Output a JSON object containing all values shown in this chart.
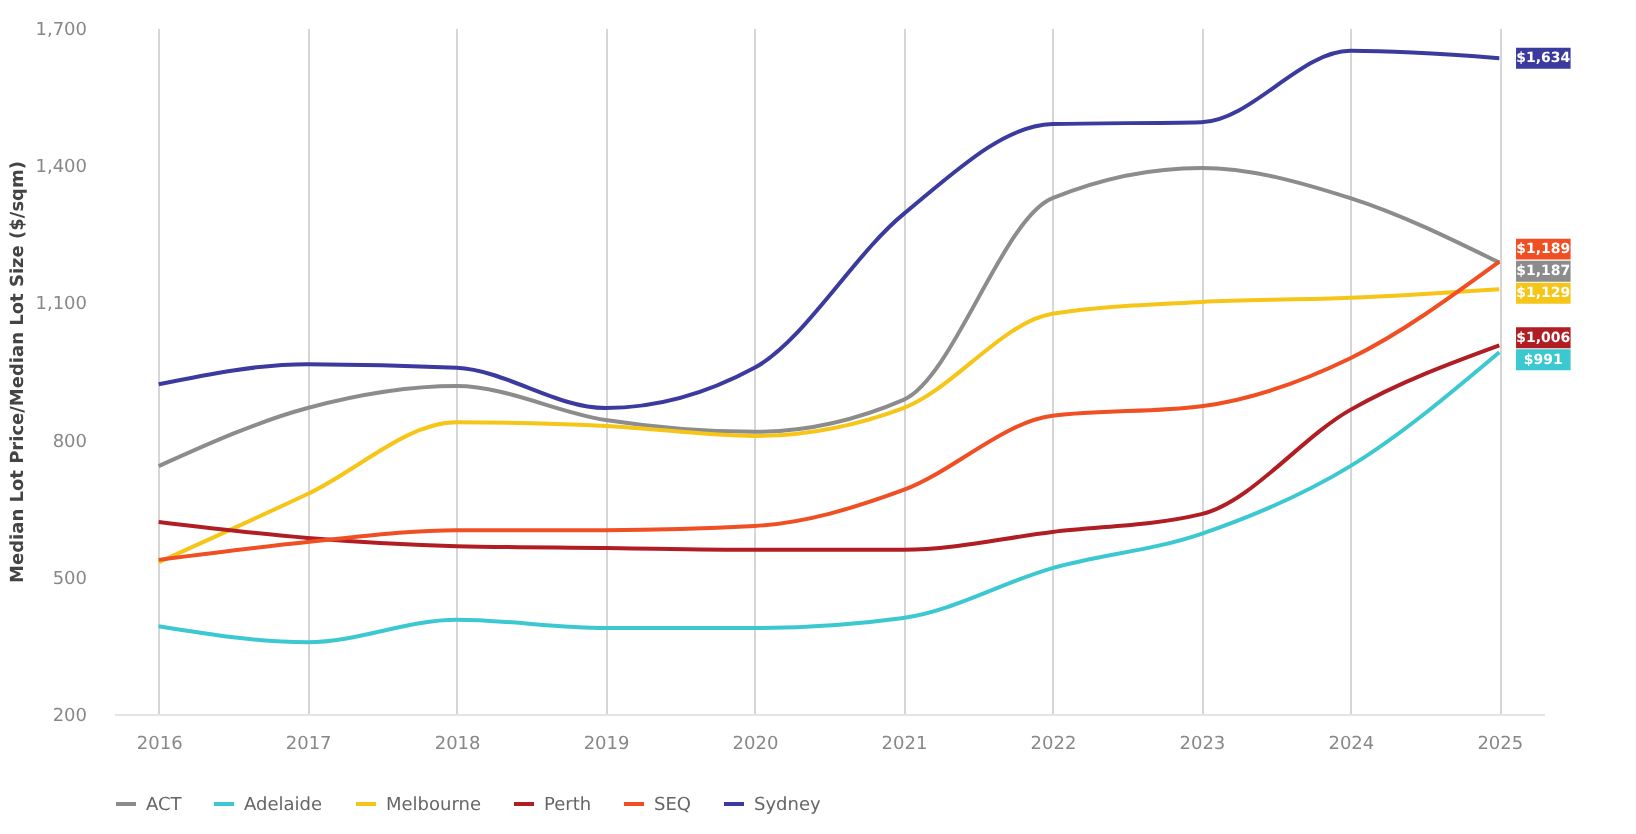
{
  "chart_data": {
    "type": "line",
    "ylabel": "Median Lot Price/Median Lot Size ($/sqm)",
    "categories": [
      "2016",
      "2017",
      "2018",
      "2019",
      "2020",
      "2021",
      "2022",
      "2023",
      "2024",
      "2025"
    ],
    "series": [
      {
        "name": "ACT",
        "color": "#8c8c8c",
        "values": [
          742,
          869,
          917,
          843,
          817,
          887,
          1328,
          1394,
          1328,
          1187
        ],
        "value_labels": [
          null,
          null,
          null,
          null,
          null,
          null,
          null,
          null,
          null,
          "$1,187"
        ]
      },
      {
        "name": "Adelaide",
        "color": "#3cc8d0",
        "values": [
          392,
          357,
          406,
          388,
          388,
          410,
          519,
          594,
          742,
          991
        ],
        "value_labels": [
          null,
          null,
          null,
          null,
          null,
          null,
          null,
          null,
          null,
          "$991"
        ]
      },
      {
        "name": "Melbourne",
        "color": "#f5c518",
        "values": [
          532,
          681,
          838,
          830,
          808,
          869,
          1075,
          1101,
          1110,
          1129
        ],
        "value_labels": [
          null,
          null,
          null,
          null,
          null,
          null,
          null,
          null,
          null,
          "$1,129"
        ]
      },
      {
        "name": "Perth",
        "color": "#b01e23",
        "values": [
          620,
          585,
          567,
          563,
          559,
          559,
          598,
          637,
          865,
          1006
        ],
        "value_labels": [
          null,
          null,
          null,
          null,
          null,
          null,
          null,
          null,
          null,
          "$1,006"
        ]
      },
      {
        "name": "SEQ",
        "color": "#f04e23",
        "values": [
          537,
          576,
          602,
          602,
          611,
          690,
          852,
          873,
          978,
          1189
        ],
        "value_labels": [
          null,
          null,
          null,
          null,
          null,
          null,
          null,
          null,
          null,
          "$1,189"
        ]
      },
      {
        "name": "Sydney",
        "color": "#3b3a9e",
        "values": [
          921,
          965,
          957,
          869,
          957,
          1293,
          1490,
          1494,
          1650,
          1634
        ],
        "value_labels": [
          null,
          null,
          null,
          null,
          null,
          null,
          null,
          null,
          null,
          "$1,634"
        ]
      }
    ],
    "ylim": [
      200,
      1700
    ],
    "yticks": [
      200,
      500,
      800,
      {
        "value": 1100,
        "label": "1,100"
      },
      {
        "value": 1400,
        "label": "1,400"
      },
      {
        "value": 1700,
        "label": "1,700"
      }
    ],
    "grid": "x",
    "legend": "bottom",
    "marker": "none",
    "line_style": "solid"
  }
}
